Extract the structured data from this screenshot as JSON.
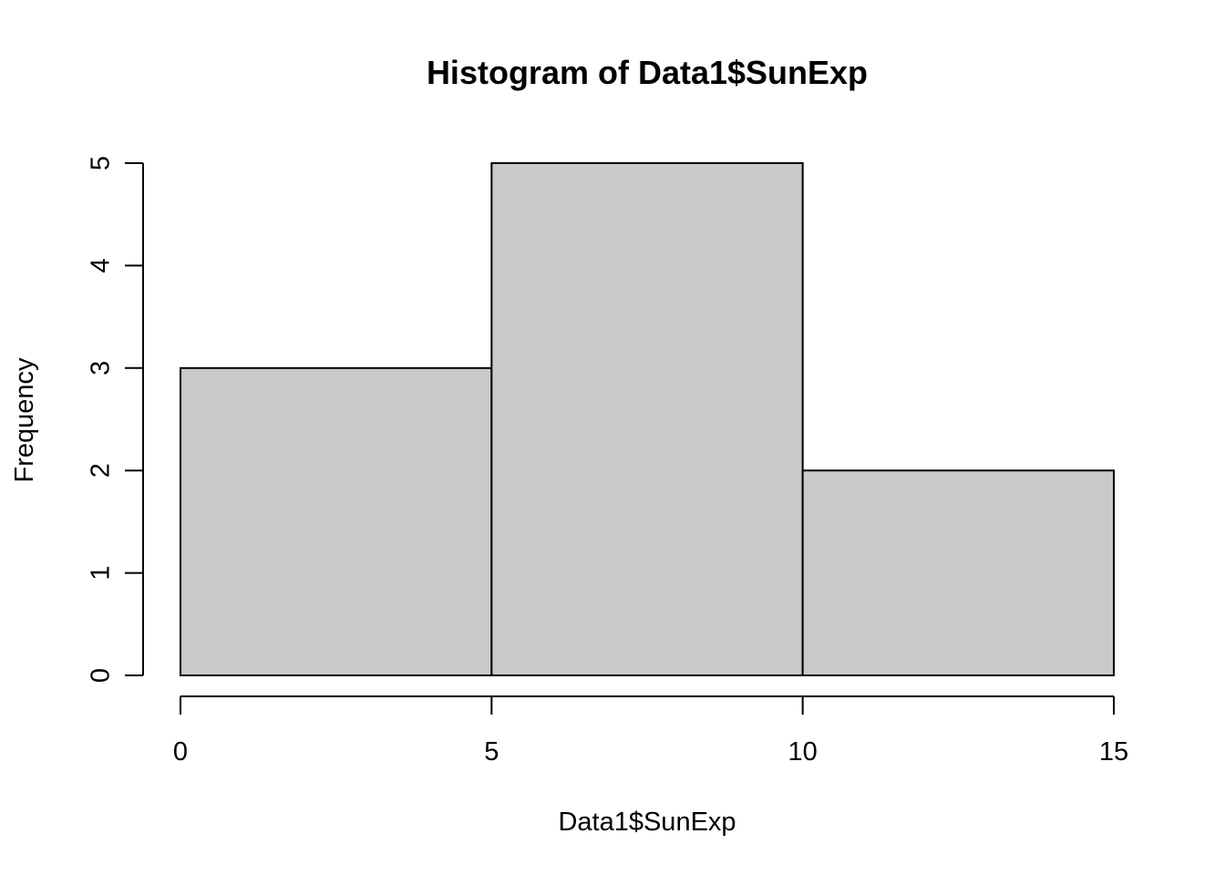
{
  "chart_data": {
    "type": "bar",
    "title": "Histogram of Data1$SunExp",
    "xlabel": "Data1$SunExp",
    "ylabel": "Frequency",
    "bins": [
      {
        "start": 0,
        "end": 5,
        "count": 3
      },
      {
        "start": 5,
        "end": 10,
        "count": 5
      },
      {
        "start": 10,
        "end": 15,
        "count": 2
      }
    ],
    "xlim": [
      0,
      15
    ],
    "ylim": [
      0,
      5
    ],
    "x_ticks": [
      0,
      5,
      10,
      15
    ],
    "y_ticks": [
      0,
      1,
      2,
      3,
      4,
      5
    ],
    "x_tick_labels": [
      "0",
      "5",
      "10",
      "15"
    ],
    "y_tick_labels": [
      "0",
      "1",
      "2",
      "3",
      "4",
      "5"
    ],
    "grid": false,
    "legend": "none",
    "colors": {
      "bar_fill": "#c9c9c9",
      "bar_stroke": "#000000",
      "axis": "#000000"
    }
  }
}
